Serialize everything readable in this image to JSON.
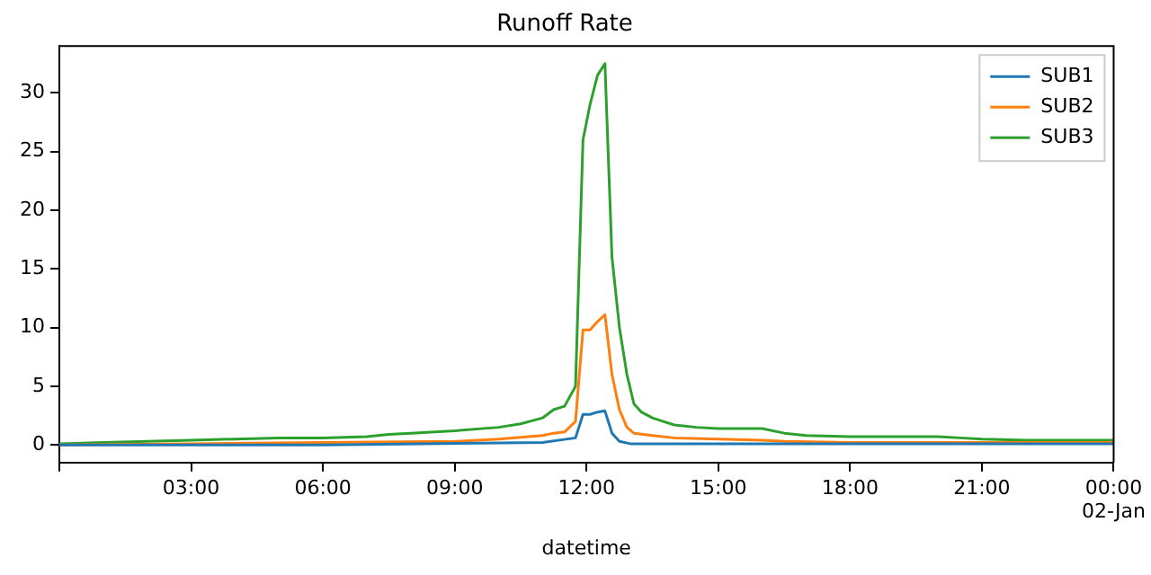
{
  "chart_data": {
    "type": "line",
    "title": "Runoff Rate",
    "xlabel": "datetime",
    "xlim": [
      0,
      24
    ],
    "xticks": [
      {
        "value": 0,
        "label": null
      },
      {
        "value": 3,
        "label": "03:00"
      },
      {
        "value": 6,
        "label": "06:00"
      },
      {
        "value": 9,
        "label": "09:00"
      },
      {
        "value": 12,
        "label": "12:00"
      },
      {
        "value": 15,
        "label": "15:00"
      },
      {
        "value": 18,
        "label": "18:00"
      },
      {
        "value": 21,
        "label": "21:00"
      },
      {
        "value": 24,
        "label": "00:00\n02-Jan"
      }
    ],
    "ylim": [
      -1.5,
      34
    ],
    "yticks": [
      0,
      5,
      10,
      15,
      20,
      25,
      30
    ],
    "grid": false,
    "legend": "top right",
    "marker": "none",
    "line_style": "solid",
    "series": [
      {
        "name": "SUB1",
        "color": "#1f77b4",
        "x": [
          0,
          6,
          11,
          11.75,
          11.92,
          12.08,
          12.25,
          12.42,
          12.58,
          12.75,
          13,
          15,
          24
        ],
        "values": [
          0,
          0,
          0.2,
          0.6,
          2.6,
          2.6,
          2.8,
          2.9,
          1.0,
          0.3,
          0.1,
          0.1,
          0.1
        ]
      },
      {
        "name": "SUB2",
        "color": "#ff7f0e",
        "x": [
          0,
          3,
          6,
          9,
          10,
          11,
          11.25,
          11.5,
          11.75,
          11.92,
          12.08,
          12.25,
          12.42,
          12.58,
          12.75,
          12.92,
          13.08,
          13.5,
          14,
          15,
          16,
          16.5,
          18,
          24
        ],
        "values": [
          0,
          0.1,
          0.2,
          0.3,
          0.5,
          0.8,
          1.0,
          1.1,
          2.0,
          9.8,
          9.8,
          10.5,
          11.1,
          6,
          3,
          1.5,
          1.0,
          0.8,
          0.6,
          0.5,
          0.4,
          0.3,
          0.2,
          0.2
        ]
      },
      {
        "name": "SUB3",
        "color": "#2ca02c",
        "x": [
          0,
          1,
          2,
          3,
          4,
          5,
          6,
          7,
          7.5,
          8,
          9,
          10,
          10.5,
          11,
          11.25,
          11.5,
          11.75,
          11.92,
          12.08,
          12.25,
          12.42,
          12.58,
          12.75,
          12.92,
          13.08,
          13.25,
          13.5,
          13.75,
          14,
          14.5,
          15,
          16,
          16.5,
          17,
          18,
          19,
          20,
          20.5,
          21,
          22,
          24
        ],
        "values": [
          0.1,
          0.2,
          0.3,
          0.4,
          0.5,
          0.6,
          0.6,
          0.7,
          0.9,
          1.0,
          1.2,
          1.5,
          1.8,
          2.3,
          3.0,
          3.3,
          5.0,
          26,
          29,
          31.5,
          32.5,
          16,
          10,
          6,
          3.5,
          2.8,
          2.3,
          2.0,
          1.7,
          1.5,
          1.4,
          1.4,
          1.0,
          0.8,
          0.7,
          0.7,
          0.7,
          0.6,
          0.5,
          0.4,
          0.4
        ]
      }
    ]
  }
}
